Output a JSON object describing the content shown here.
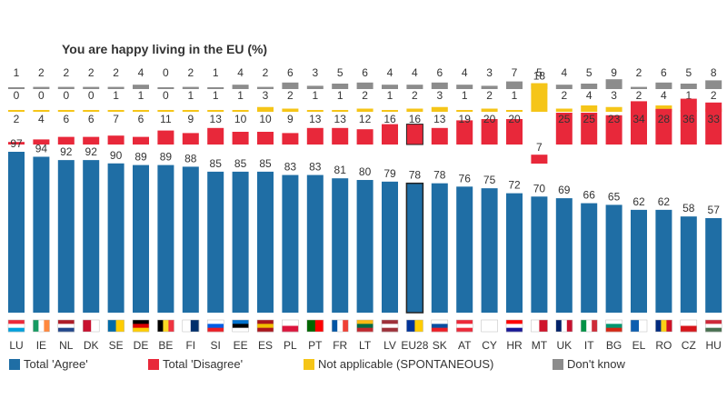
{
  "chart_data": {
    "type": "bar",
    "title": "You are happy living in the EU  (%)",
    "categories": [
      "LU",
      "IE",
      "NL",
      "DK",
      "SE",
      "DE",
      "BE",
      "FI",
      "SI",
      "EE",
      "ES",
      "PL",
      "PT",
      "FR",
      "LT",
      "LV",
      "EU28",
      "SK",
      "AT",
      "CY",
      "HR",
      "MT",
      "UK",
      "IT",
      "BG",
      "EL",
      "RO",
      "CZ",
      "HU"
    ],
    "highlight": "EU28",
    "series": [
      {
        "name": "Total 'Agree'",
        "color": "#1f6ea5",
        "values": [
          97,
          94,
          92,
          92,
          90,
          89,
          89,
          88,
          85,
          85,
          85,
          83,
          83,
          81,
          80,
          79,
          78,
          78,
          76,
          75,
          72,
          70,
          69,
          66,
          65,
          62,
          62,
          58,
          57
        ]
      },
      {
        "name": "Total 'Disagree'",
        "color": "#e8283a",
        "values": [
          2,
          4,
          6,
          6,
          7,
          6,
          11,
          9,
          13,
          10,
          10,
          9,
          13,
          13,
          12,
          16,
          16,
          13,
          19,
          20,
          20,
          7,
          25,
          25,
          23,
          34,
          28,
          36,
          33
        ]
      },
      {
        "name": "Not applicable (SPONTANEOUS)",
        "color": "#f5c518",
        "values": [
          0,
          0,
          0,
          0,
          1,
          1,
          0,
          1,
          1,
          1,
          3,
          2,
          1,
          1,
          2,
          1,
          2,
          3,
          1,
          2,
          1,
          18,
          2,
          4,
          3,
          2,
          4,
          1,
          2
        ]
      },
      {
        "name": "Don't know",
        "color": "#8c8c8c",
        "values": [
          1,
          2,
          2,
          2,
          2,
          4,
          0,
          2,
          1,
          4,
          2,
          6,
          3,
          5,
          6,
          4,
          4,
          6,
          4,
          3,
          7,
          5,
          4,
          5,
          9,
          2,
          6,
          5,
          8
        ]
      }
    ],
    "flags": {
      "LU": [
        "#ed2939",
        "#ffffff",
        "#00a1de"
      ],
      "IE": [
        "#169b62",
        "#ffffff",
        "#ff883e"
      ],
      "NL": [
        "#ae1c28",
        "#ffffff",
        "#21468b"
      ],
      "DE": [
        "#000000",
        "#dd0000",
        "#ffce00"
      ],
      "BE": [
        "#000000",
        "#fdda24",
        "#ef3340"
      ],
      "EE": [
        "#0072ce",
        "#000000",
        "#ffffff"
      ],
      "LT": [
        "#fdb913",
        "#006a44",
        "#c1272d"
      ],
      "LV": [
        "#9e3039",
        "#ffffff",
        "#9e3039"
      ],
      "AT": [
        "#ed2939",
        "#ffffff",
        "#ed2939"
      ],
      "IT": [
        "#009246",
        "#ffffff",
        "#ce2b37"
      ],
      "FR": [
        "#0055a4",
        "#ffffff",
        "#ef4135"
      ],
      "BG": [
        "#ffffff",
        "#00966e",
        "#d62612"
      ],
      "RO": [
        "#002b7f",
        "#fcd116",
        "#ce1126"
      ],
      "HU": [
        "#ce2939",
        "#ffffff",
        "#477050"
      ],
      "SI": [
        "#ffffff",
        "#005ce5",
        "#ed1c24"
      ],
      "SK": [
        "#ffffff",
        "#0b4ea2",
        "#ee1c25"
      ],
      "PL": [
        "#ffffff",
        "#dc143c"
      ],
      "HR": [
        "#ff0000",
        "#ffffff",
        "#171796"
      ],
      "CZ": [
        "#ffffff",
        "#d7141a"
      ],
      "ES": [
        "#aa151b",
        "#f1bf00",
        "#aa151b"
      ],
      "PT": [
        "#006600",
        "#ff0000"
      ],
      "MT": [
        "#ffffff",
        "#cf142b"
      ],
      "CY": [
        "#ffffff"
      ],
      "EL": [
        "#0d5eaf",
        "#ffffff"
      ],
      "UK": [
        "#012169",
        "#ffffff",
        "#c8102e"
      ],
      "DK": [
        "#c8102e",
        "#ffffff"
      ],
      "SE": [
        "#006aa7",
        "#fecc00"
      ],
      "FI": [
        "#ffffff",
        "#002f6c"
      ],
      "EU28": [
        "#003399",
        "#ffcc00"
      ]
    }
  }
}
